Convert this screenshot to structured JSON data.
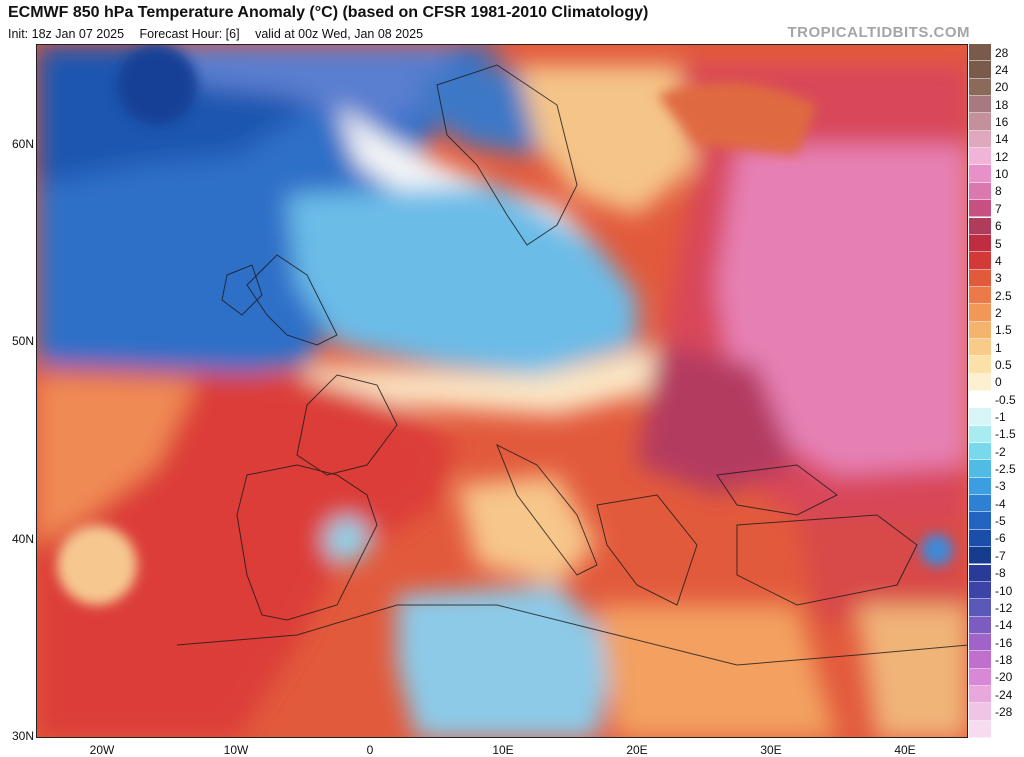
{
  "header": {
    "title": "ECMWF 850 hPa Temperature Anomaly (°C) (based on CFSR 1981-2010 Climatology)",
    "init": "Init: 18z Jan 07 2025",
    "forecast_hour": "Forecast Hour: [6]",
    "valid": "valid at 00z Wed, Jan 08 2025",
    "brand": "TROPICALTIDBITS.COM"
  },
  "axes": {
    "lat_labels": [
      "60N",
      "50N",
      "40N",
      "30N"
    ],
    "lon_labels": [
      "20W",
      "10W",
      "0",
      "10E",
      "20E",
      "30E",
      "40E"
    ]
  },
  "colorbar": {
    "levels": [
      {
        "label": "28",
        "color": "#7a5a4a"
      },
      {
        "label": "24",
        "color": "#8c6a5a"
      },
      {
        "label": "20",
        "color": "#a87a80"
      },
      {
        "label": "18",
        "color": "#c3909c"
      },
      {
        "label": "16",
        "color": "#dfa8bc"
      },
      {
        "label": "14",
        "color": "#f0b4d8"
      },
      {
        "label": "12",
        "color": "#e890c8"
      },
      {
        "label": "10",
        "color": "#dc78b0"
      },
      {
        "label": "8",
        "color": "#c85080"
      },
      {
        "label": "7",
        "color": "#b03c5c"
      },
      {
        "label": "6",
        "color": "#c02c40"
      },
      {
        "label": "5",
        "color": "#d23a38"
      },
      {
        "label": "4",
        "color": "#e25a3c"
      },
      {
        "label": "3",
        "color": "#ec7a48"
      },
      {
        "label": "2.5",
        "color": "#f19858"
      },
      {
        "label": "2",
        "color": "#f5b46e"
      },
      {
        "label": "1.5",
        "color": "#f8cc88"
      },
      {
        "label": "1",
        "color": "#fbe0a8"
      },
      {
        "label": "0.5",
        "color": "#fdf0d0"
      },
      {
        "label": "0",
        "color": "#ffffff"
      },
      {
        "label": "-0.5",
        "color": "#d8f6f8"
      },
      {
        "label": "-1",
        "color": "#a8ecf0"
      },
      {
        "label": "-1.5",
        "color": "#78d8ec"
      },
      {
        "label": "-2",
        "color": "#50bce6"
      },
      {
        "label": "-2.5",
        "color": "#3a9ee0"
      },
      {
        "label": "-3",
        "color": "#2e80d2"
      },
      {
        "label": "-4",
        "color": "#2264c0"
      },
      {
        "label": "-5",
        "color": "#1a4ea8"
      },
      {
        "label": "-6",
        "color": "#163c90"
      },
      {
        "label": "-7",
        "color": "#2a3a98"
      },
      {
        "label": "-8",
        "color": "#3c44a8"
      },
      {
        "label": "-10",
        "color": "#5a58b8"
      },
      {
        "label": "-12",
        "color": "#7c5cc0"
      },
      {
        "label": "-14",
        "color": "#a064c8"
      },
      {
        "label": "-16",
        "color": "#c070cc"
      },
      {
        "label": "-18",
        "color": "#d888d4"
      },
      {
        "label": "-20",
        "color": "#e8a8dc"
      },
      {
        "label": "-24",
        "color": "#f0c4e4"
      },
      {
        "label": "-28",
        "color": "#f6dcee"
      }
    ]
  }
}
